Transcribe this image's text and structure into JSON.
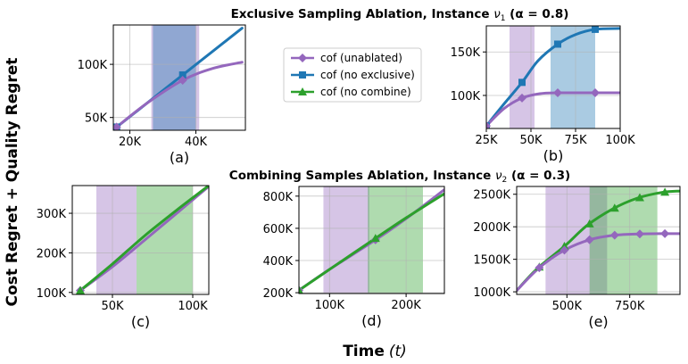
{
  "figure": {
    "ylabel": "Cost Regret + Quality Regret",
    "xlabel_bold": "Time",
    "xlabel_var": "(t)"
  },
  "legend": {
    "placement": "top-center",
    "entries": [
      {
        "label": "cof (unablated)",
        "color": "#9467bd",
        "marker": "diamond"
      },
      {
        "label": "cof (no exclusive)",
        "color": "#1f77b4",
        "marker": "square"
      },
      {
        "label": "cof (no combine)",
        "color": "#2ca02c",
        "marker": "triangle"
      }
    ]
  },
  "rows": [
    {
      "title_main": "Exclusive Sampling Ablation, Instance ",
      "title_nu": "ν",
      "title_sub": "1",
      "title_tail": " (α = 0.8)"
    },
    {
      "title_main": "Combining Samples Ablation, Instance ",
      "title_nu": "ν",
      "title_sub": "2",
      "title_tail": " (α = 0.3)"
    }
  ],
  "chart_data": [
    {
      "id": "a",
      "sublabel": "(a)",
      "type": "line",
      "xlim": [
        15000,
        55000
      ],
      "ylim": [
        38000,
        137000
      ],
      "xticks": [
        20000,
        40000
      ],
      "xticklabels": [
        "20K",
        "40K"
      ],
      "yticks": [
        50000,
        100000
      ],
      "yticklabels": [
        "50K",
        "100K"
      ],
      "grid": true,
      "bands": [
        {
          "series": "cof (unablated)",
          "color": "#9467bd",
          "x0": 26500,
          "x1": 41000
        },
        {
          "series": "cof (no exclusive)",
          "color": "#1f77b4",
          "x0": 27000,
          "x1": 40000
        }
      ],
      "series": [
        {
          "name": "cof (no exclusive)",
          "color": "#1f77b4",
          "marker": "square",
          "x": [
            16000,
            25000,
            36000,
            45000,
            54000
          ],
          "y": [
            41000,
            63000,
            90000,
            112000,
            134000
          ],
          "markers_x": [
            16000,
            36000
          ]
        },
        {
          "name": "cof (unablated)",
          "color": "#9467bd",
          "marker": "diamond",
          "x": [
            16000,
            25000,
            36000,
            45000,
            54000
          ],
          "y": [
            41000,
            63000,
            85000,
            96000,
            102000
          ],
          "markers_x": [
            16000,
            36000
          ]
        }
      ]
    },
    {
      "id": "b",
      "sublabel": "(b)",
      "type": "line",
      "xlim": [
        25000,
        100000
      ],
      "ylim": [
        62000,
        180000
      ],
      "xticks": [
        25000,
        50000,
        75000,
        100000
      ],
      "xticklabels": [
        "25K",
        "50K",
        "75K",
        "100K"
      ],
      "yticks": [
        100000,
        150000
      ],
      "yticklabels": [
        "100K",
        "150K"
      ],
      "grid": true,
      "bands": [
        {
          "series": "cof (unablated)",
          "color": "#9467bd",
          "x0": 38000,
          "x1": 52000
        },
        {
          "series": "cof (no exclusive)",
          "color": "#1f77b4",
          "x0": 61000,
          "x1": 86000
        }
      ],
      "series": [
        {
          "name": "cof (no exclusive)",
          "color": "#1f77b4",
          "marker": "square",
          "x": [
            25000,
            34000,
            45000,
            54000,
            65000,
            75000,
            86000,
            100000
          ],
          "y": [
            65000,
            88000,
            115000,
            140000,
            159000,
            170000,
            176000,
            177000
          ],
          "markers_x": [
            25000,
            45000,
            65000,
            86000
          ]
        },
        {
          "name": "cof (unablated)",
          "color": "#9467bd",
          "marker": "diamond",
          "x": [
            25000,
            35000,
            45000,
            55000,
            65000,
            75000,
            86000,
            100000
          ],
          "y": [
            65000,
            85000,
            97000,
            102000,
            103000,
            103000,
            103000,
            103000
          ],
          "markers_x": [
            25000,
            45000,
            65000,
            86000
          ]
        }
      ]
    },
    {
      "id": "c",
      "sublabel": "(c)",
      "type": "line",
      "xlim": [
        25000,
        110000
      ],
      "ylim": [
        95000,
        370000
      ],
      "xticks": [
        50000,
        100000
      ],
      "xticklabels": [
        "50K",
        "100K"
      ],
      "yticks": [
        100000,
        200000,
        300000
      ],
      "yticklabels": [
        "100K",
        "200K",
        "300K"
      ],
      "grid": true,
      "bands": [
        {
          "series": "cof (unablated)",
          "color": "#9467bd",
          "x0": 40000,
          "x1": 65000
        },
        {
          "series": "cof (no combine)",
          "color": "#2ca02c",
          "x0": 65000,
          "x1": 100000
        }
      ],
      "series": [
        {
          "name": "cof (unablated)",
          "color": "#9467bd",
          "marker": "diamond",
          "x": [
            30000,
            50000,
            70000,
            90000,
            110000
          ],
          "y": [
            105000,
            165000,
            232000,
            300000,
            368000
          ],
          "markers_x": [
            30000
          ]
        },
        {
          "name": "cof (no combine)",
          "color": "#2ca02c",
          "marker": "triangle",
          "x": [
            30000,
            50000,
            70000,
            90000,
            110000
          ],
          "y": [
            105000,
            172000,
            243000,
            308000,
            370000
          ],
          "markers_x": [
            30000
          ]
        }
      ]
    },
    {
      "id": "d",
      "sublabel": "(d)",
      "type": "line",
      "xlim": [
        60000,
        250000
      ],
      "ylim": [
        195000,
        860000
      ],
      "xticks": [
        100000,
        200000
      ],
      "xticklabels": [
        "100K",
        "200K"
      ],
      "yticks": [
        200000,
        400000,
        600000,
        800000
      ],
      "yticklabels": [
        "200K",
        "400K",
        "600K",
        "800K"
      ],
      "grid": true,
      "bands": [
        {
          "series": "cof (unablated)",
          "color": "#9467bd",
          "x0": 92000,
          "x1": 152000
        },
        {
          "series": "cof (no combine)",
          "color": "#2ca02c",
          "x0": 150000,
          "x1": 222000
        }
      ],
      "series": [
        {
          "name": "cof (unablated)",
          "color": "#9467bd",
          "marker": "diamond",
          "x": [
            60000,
            100000,
            160000,
            200000,
            250000
          ],
          "y": [
            215000,
            345000,
            528000,
            660000,
            840000
          ],
          "markers_x": [
            60000,
            160000
          ]
        },
        {
          "name": "cof (no combine)",
          "color": "#2ca02c",
          "marker": "triangle",
          "x": [
            60000,
            100000,
            160000,
            200000,
            250000
          ],
          "y": [
            215000,
            345000,
            538000,
            665000,
            815000
          ],
          "markers_x": [
            60000,
            160000
          ]
        }
      ]
    },
    {
      "id": "e",
      "sublabel": "(e)",
      "type": "line",
      "xlim": [
        300000,
        950000
      ],
      "ylim": [
        960000,
        2620000
      ],
      "xticks": [
        500000,
        750000
      ],
      "xticklabels": [
        "500K",
        "750K"
      ],
      "yticks": [
        1000000,
        1500000,
        2000000,
        2500000
      ],
      "yticklabels": [
        "1000K",
        "1500K",
        "2000K",
        "2500K"
      ],
      "grid": true,
      "bands": [
        {
          "series": "cof (unablated)",
          "color": "#9467bd",
          "x0": 415000,
          "x1": 660000
        },
        {
          "series": "cof (no combine)",
          "color": "#2ca02c",
          "x0": 590000,
          "x1": 860000
        }
      ],
      "series": [
        {
          "name": "cof (no combine)",
          "color": "#2ca02c",
          "marker": "triangle",
          "x": [
            300000,
            380000,
            490000,
            580000,
            680000,
            780000,
            880000,
            950000
          ],
          "y": [
            1020000,
            1350000,
            1700000,
            2020000,
            2270000,
            2440000,
            2530000,
            2550000
          ],
          "markers_x": [
            390000,
            490000,
            590000,
            690000,
            790000,
            890000
          ]
        },
        {
          "name": "cof (unablated)",
          "color": "#9467bd",
          "marker": "diamond",
          "x": [
            300000,
            390000,
            490000,
            590000,
            690000,
            790000,
            890000,
            950000
          ],
          "y": [
            1020000,
            1370000,
            1640000,
            1800000,
            1870000,
            1890000,
            1895000,
            1895000
          ],
          "markers_x": [
            390000,
            490000,
            590000,
            690000,
            790000,
            890000
          ]
        }
      ]
    }
  ]
}
